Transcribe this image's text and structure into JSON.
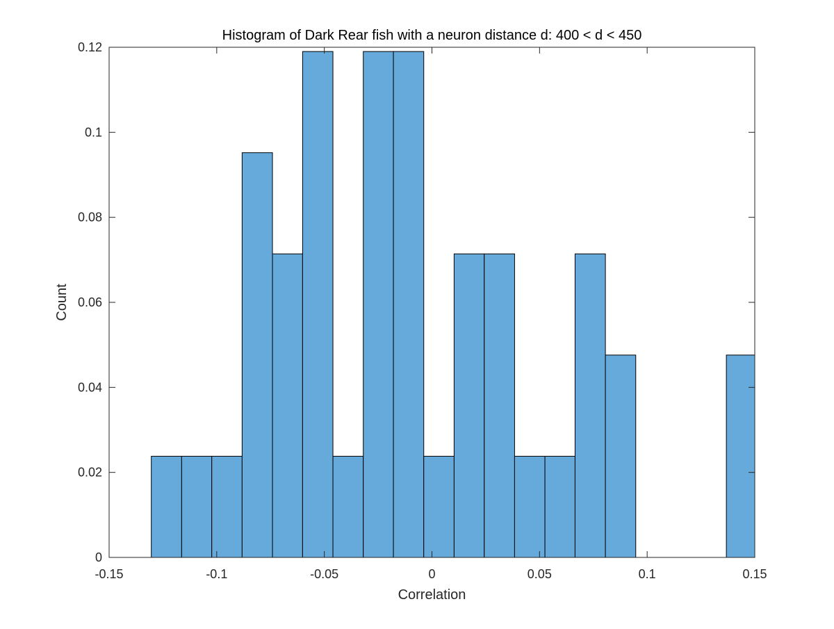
{
  "chart_data": {
    "type": "bar",
    "subtype": "histogram",
    "title": "Histogram of Dark Rear fish with a neuron distance d: 400 < d < 450",
    "xlabel": "Correlation",
    "ylabel": "Count",
    "xlim": [
      -0.15,
      0.15
    ],
    "ylim": [
      0,
      0.12
    ],
    "xticks": [
      -0.15,
      -0.1,
      -0.05,
      0,
      0.05,
      0.1,
      0.15
    ],
    "xtick_labels": [
      "-0.15",
      "-0.1",
      "-0.05",
      "0",
      "0.05",
      "0.1",
      "0.15"
    ],
    "yticks": [
      0,
      0.02,
      0.04,
      0.06,
      0.08,
      0.1,
      0.12
    ],
    "ytick_labels": [
      "0",
      "0.02",
      "0.04",
      "0.06",
      "0.08",
      "0.1",
      "0.12"
    ],
    "bin_edges": [
      -0.1304,
      -0.1163,
      -0.1023,
      -0.0882,
      -0.0741,
      -0.0601,
      -0.046,
      -0.0319,
      -0.0179,
      -0.0038,
      0.0103,
      0.0243,
      0.0384,
      0.0525,
      0.0665,
      0.0806,
      0.0947,
      0.1087,
      0.1228,
      0.1368,
      0.15
    ],
    "values": [
      0.0238,
      0.0238,
      0.0238,
      0.0952,
      0.0714,
      0.119,
      0.0238,
      0.119,
      0.119,
      0.0238,
      0.0714,
      0.0714,
      0.0238,
      0.0238,
      0.0714,
      0.0476,
      0,
      0,
      0,
      0.0476
    ],
    "bar_color": "#66AADB",
    "edge_color": "#000000",
    "grid": false,
    "box": true
  }
}
